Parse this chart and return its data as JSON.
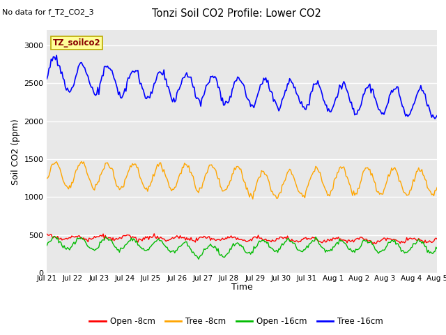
{
  "title": "Tonzi Soil CO2 Profile: Lower CO2",
  "subtitle": "No data for f_T2_CO2_3",
  "xlabel": "Time",
  "ylabel": "Soil CO2 (ppm)",
  "xlim": [
    0,
    360
  ],
  "ylim": [
    0,
    3200
  ],
  "yticks": [
    0,
    500,
    1000,
    1500,
    2000,
    2500,
    3000
  ],
  "xtick_labels": [
    "Jul 21",
    "Jul 22",
    "Jul 23",
    "Jul 24",
    "Jul 25",
    "Jul 26",
    "Jul 27",
    "Jul 28",
    "Jul 29",
    "Jul 30",
    "Jul 31",
    "Aug 1",
    "Aug 2",
    "Aug 3",
    "Aug 4",
    "Aug 5"
  ],
  "xtick_positions": [
    0,
    24,
    48,
    72,
    96,
    120,
    144,
    168,
    192,
    216,
    240,
    264,
    288,
    312,
    336,
    360
  ],
  "bg_color": "#e8e8e8",
  "fig_bg_color": "#ffffff",
  "line_colors": {
    "open8": "#ff0000",
    "tree8": "#ffa500",
    "open16": "#00bb00",
    "tree16": "#0000ff"
  },
  "legend_labels": [
    "Open -8cm",
    "Tree -8cm",
    "Open -16cm",
    "Tree -16cm"
  ],
  "legend_colors": [
    "#ff0000",
    "#ffa500",
    "#00bb00",
    "#0000ff"
  ],
  "annotation_text": "TZ_soilco2",
  "annotation_box_color": "#ffff99",
  "annotation_border_color": "#bbaa00"
}
